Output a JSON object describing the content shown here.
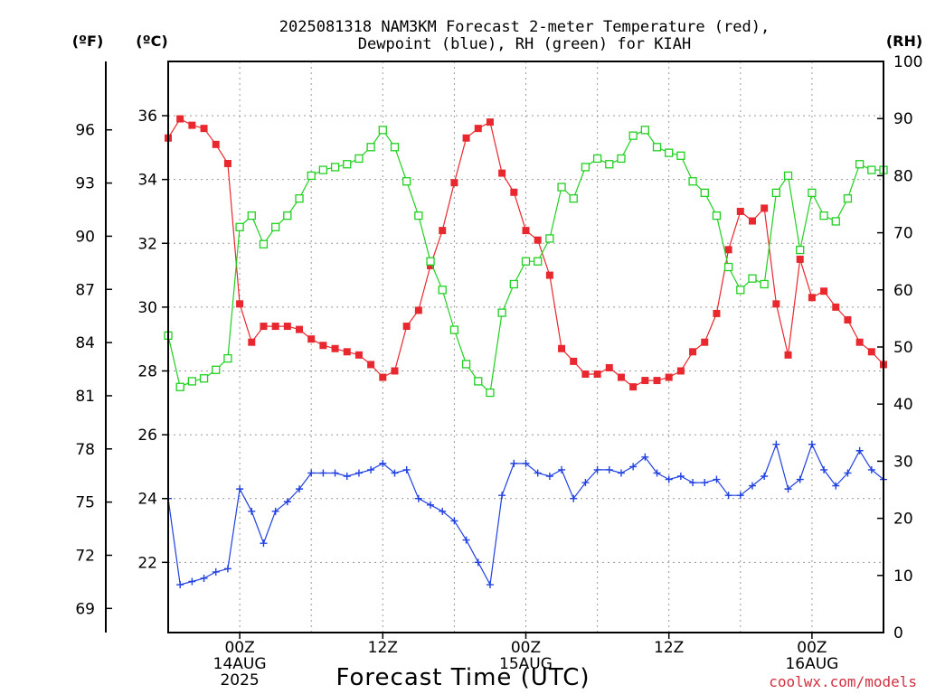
{
  "chart_data": {
    "type": "line",
    "title": [
      "2025081318 NAM3KM Forecast 2-meter Temperature (red),",
      "Dewpoint (blue), RH (green) for KIAH"
    ],
    "xlabel": "Forecast Time (UTC)",
    "credit": "coolwx.com/models",
    "units": {
      "fahrenheit": "(ºF)",
      "celsius": "(ºC)",
      "rh": "(RH)"
    },
    "y_celsius": {
      "ylim": [
        19.8,
        37.7
      ],
      "ticks": [
        22,
        24,
        26,
        28,
        30,
        32,
        34,
        36
      ]
    },
    "y_fahrenheit": {
      "ticks": [
        69,
        72,
        75,
        78,
        81,
        84,
        87,
        90,
        93,
        96
      ]
    },
    "y_rh": {
      "ylim": [
        0,
        100
      ],
      "ticks": [
        0,
        10,
        20,
        30,
        40,
        50,
        60,
        70,
        80,
        90,
        100
      ]
    },
    "xlim": [
      18,
      78
    ],
    "x_ticks": [
      {
        "hour": 24,
        "lines": [
          "00Z",
          "14AUG",
          "2025"
        ]
      },
      {
        "hour": 36,
        "lines": [
          "12Z"
        ]
      },
      {
        "hour": 48,
        "lines": [
          "00Z",
          "15AUG"
        ]
      },
      {
        "hour": 60,
        "lines": [
          "12Z"
        ]
      },
      {
        "hour": 72,
        "lines": [
          "00Z",
          "16AUG"
        ]
      }
    ],
    "grid": true,
    "colors": {
      "temperature": "#e8282e",
      "dewpoint": "#2040e0",
      "rh": "#20d020"
    },
    "series": [
      {
        "key": "temperature",
        "axis": "celsius",
        "marker": "filled-square",
        "x": [
          18,
          19,
          20,
          21,
          22,
          23,
          24,
          25,
          26,
          27,
          28,
          29,
          30,
          31,
          32,
          33,
          34,
          35,
          36,
          37,
          38,
          39,
          40,
          41,
          42,
          43,
          44,
          45,
          46,
          47,
          48,
          49,
          50,
          51,
          52,
          53,
          54,
          55,
          56,
          57,
          58,
          59,
          60,
          61,
          62,
          63,
          64,
          65,
          66,
          67,
          68,
          69,
          70,
          71,
          72,
          73,
          74,
          75,
          76,
          77,
          78
        ],
        "y": [
          35.3,
          35.9,
          35.7,
          35.6,
          35.1,
          34.5,
          30.1,
          28.9,
          29.4,
          29.4,
          29.4,
          29.3,
          29.0,
          28.8,
          28.7,
          28.6,
          28.5,
          28.2,
          27.8,
          28.0,
          29.4,
          29.9,
          31.3,
          32.4,
          33.9,
          35.3,
          35.6,
          35.8,
          34.2,
          33.6,
          32.4,
          32.1,
          31.0,
          28.7,
          28.3,
          27.9,
          27.9,
          28.1,
          27.8,
          27.5,
          27.7,
          27.7,
          27.8,
          28.0,
          28.6,
          28.9,
          29.8,
          31.8,
          33.0,
          32.7,
          33.1,
          30.1,
          28.5,
          31.5,
          30.3,
          30.5,
          30.0,
          29.6,
          28.9,
          28.6,
          28.2
        ]
      },
      {
        "key": "dewpoint",
        "axis": "celsius",
        "marker": "plus",
        "x": [
          18,
          19,
          20,
          21,
          22,
          23,
          24,
          25,
          26,
          27,
          28,
          29,
          30,
          31,
          32,
          33,
          34,
          35,
          36,
          37,
          38,
          39,
          40,
          41,
          42,
          43,
          44,
          45,
          46,
          47,
          48,
          49,
          50,
          51,
          52,
          53,
          54,
          55,
          56,
          57,
          58,
          59,
          60,
          61,
          62,
          63,
          64,
          65,
          66,
          67,
          68,
          69,
          70,
          71,
          72,
          73,
          74,
          75,
          76,
          77,
          78
        ],
        "y": [
          24.0,
          21.3,
          21.4,
          21.5,
          21.7,
          21.8,
          24.3,
          23.6,
          22.6,
          23.6,
          23.9,
          24.3,
          24.8,
          24.8,
          24.8,
          24.7,
          24.8,
          24.9,
          25.1,
          24.8,
          24.9,
          24.0,
          23.8,
          23.6,
          23.3,
          22.7,
          22.0,
          21.3,
          24.1,
          25.1,
          25.1,
          24.8,
          24.7,
          24.9,
          24.0,
          24.5,
          24.9,
          24.9,
          24.8,
          25.0,
          25.3,
          24.8,
          24.6,
          24.7,
          24.5,
          24.5,
          24.6,
          24.1,
          24.1,
          24.4,
          24.7,
          25.7,
          24.3,
          24.6,
          25.7,
          24.9,
          24.4,
          24.8,
          25.5,
          24.9,
          24.6
        ]
      },
      {
        "key": "rh",
        "axis": "rh",
        "marker": "open-square",
        "x": [
          18,
          19,
          20,
          21,
          22,
          23,
          24,
          25,
          26,
          27,
          28,
          29,
          30,
          31,
          32,
          33,
          34,
          35,
          36,
          37,
          38,
          39,
          40,
          41,
          42,
          43,
          44,
          45,
          46,
          47,
          48,
          49,
          50,
          51,
          52,
          53,
          54,
          55,
          56,
          57,
          58,
          59,
          60,
          61,
          62,
          63,
          64,
          65,
          66,
          67,
          68,
          69,
          70,
          71,
          72,
          73,
          74,
          75,
          76,
          77,
          78
        ],
        "y": [
          52,
          43,
          44,
          44.5,
          46,
          48,
          71,
          73,
          68,
          71,
          73,
          76,
          80,
          81,
          81.5,
          82,
          83,
          85,
          88,
          85,
          79,
          73,
          65,
          60,
          53,
          47,
          44,
          42,
          56,
          61,
          65,
          65,
          69,
          78,
          76,
          81.5,
          83,
          82,
          83,
          87,
          88,
          85,
          84,
          83.5,
          79,
          77,
          73,
          64,
          60,
          62,
          61,
          77,
          80,
          67,
          77,
          73,
          72,
          76,
          82,
          81,
          81
        ]
      }
    ]
  }
}
